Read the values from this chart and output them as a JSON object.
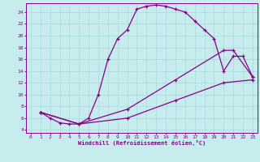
{
  "xlabel": "Windchill (Refroidissement éolien,°C)",
  "bg_color": "#c6ecee",
  "line_color": "#880088",
  "grid_color": "#a8d8dc",
  "xlim": [
    -0.5,
    23.5
  ],
  "ylim": [
    3.5,
    25.5
  ],
  "xticks": [
    0,
    1,
    2,
    3,
    4,
    5,
    6,
    7,
    8,
    9,
    10,
    11,
    12,
    13,
    14,
    15,
    16,
    17,
    18,
    19,
    20,
    21,
    22,
    23
  ],
  "yticks": [
    4,
    6,
    8,
    10,
    12,
    14,
    16,
    18,
    20,
    22,
    24
  ],
  "line1_x": [
    1,
    2,
    3,
    4,
    5,
    6,
    7,
    8,
    9,
    10,
    11,
    12,
    13,
    14,
    15,
    16,
    17,
    18,
    19,
    20,
    21,
    22,
    23
  ],
  "line1_y": [
    7.0,
    6.0,
    5.2,
    5.0,
    5.0,
    6.0,
    10.0,
    16.0,
    19.5,
    21.0,
    24.5,
    25.0,
    25.2,
    25.0,
    24.5,
    24.0,
    22.5,
    21.0,
    19.5,
    14.0,
    16.5,
    16.5,
    13.0
  ],
  "line2_x": [
    1,
    5,
    10,
    15,
    20,
    21,
    23
  ],
  "line2_y": [
    7.0,
    5.0,
    7.5,
    12.5,
    17.5,
    17.5,
    13.0
  ],
  "line3_x": [
    1,
    5,
    10,
    15,
    20,
    23
  ],
  "line3_y": [
    7.0,
    5.0,
    6.0,
    9.0,
    12.0,
    12.5
  ]
}
